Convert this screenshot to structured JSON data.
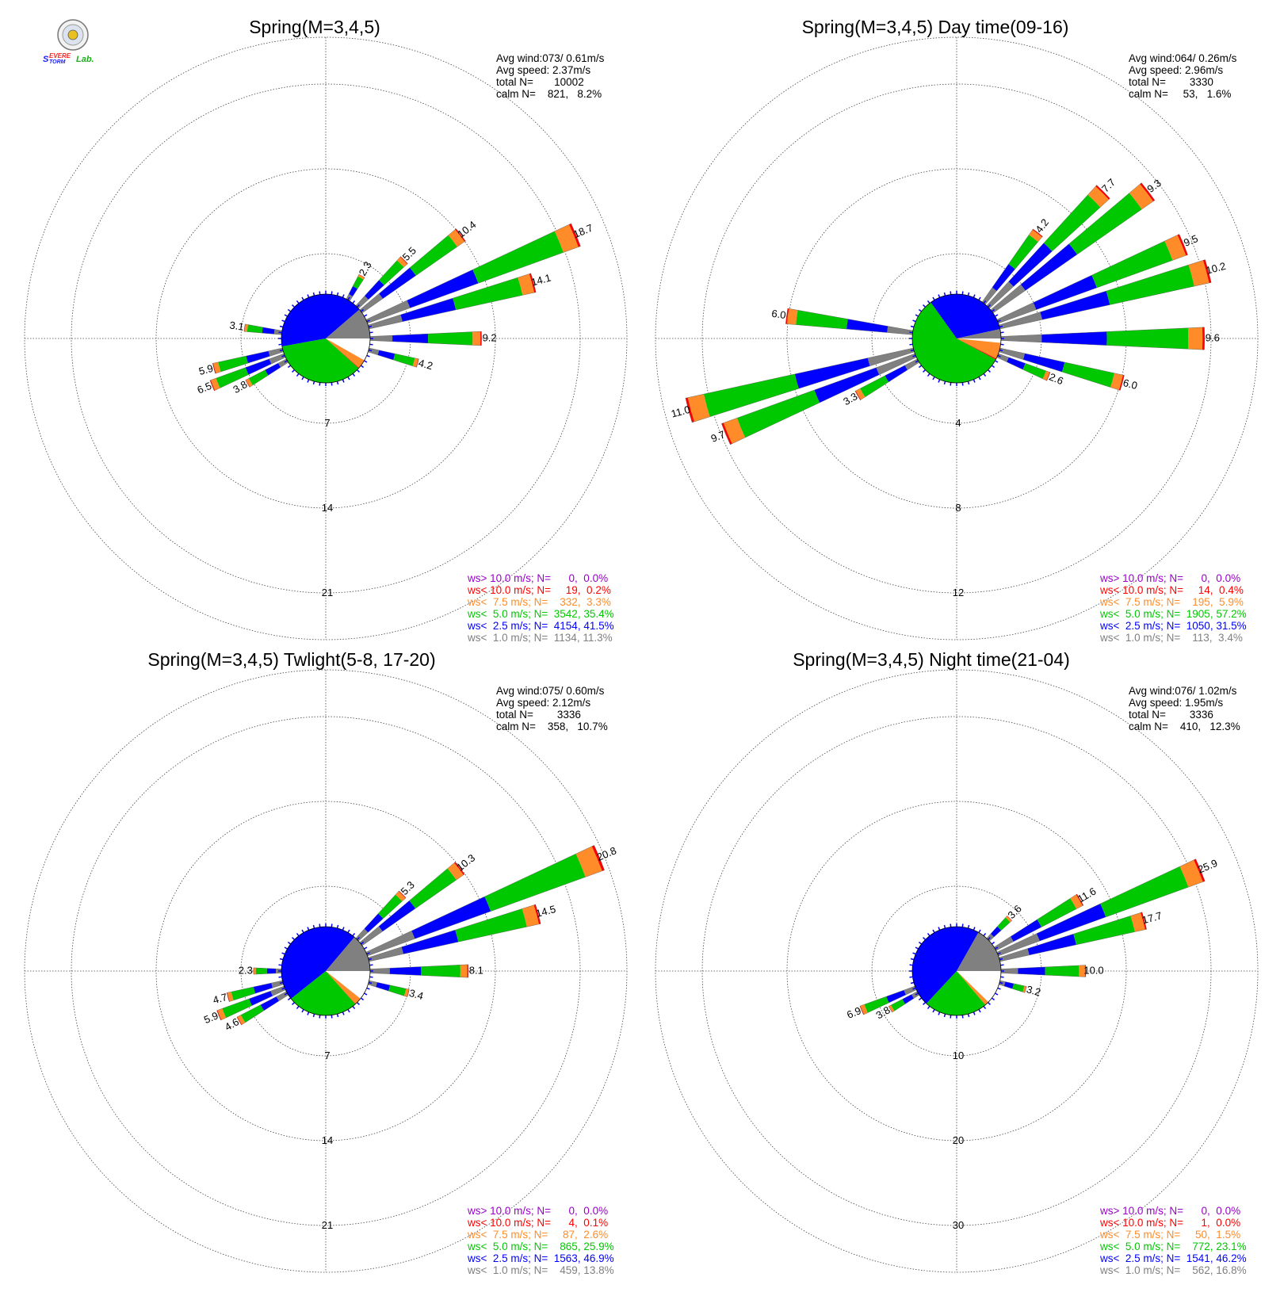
{
  "logo": {
    "name": "severe-storm-lab-logo",
    "text": [
      "S",
      "EVERE",
      "TORM",
      "Lab."
    ]
  },
  "colors": {
    "gt10": "#9a00c8",
    "lt10": "#ff0000",
    "lt7_5": "#ff8c28",
    "lt5": "#00c800",
    "lt2_5": "#0000ff",
    "lt1": "#808080"
  },
  "chart_data": [
    {
      "type": "wind-rose",
      "title": "Spring(M=3,4,5)",
      "stats": {
        "avg_wind": "Avg wind:073/ 0.61m/s",
        "avg_speed": "Avg speed: 2.37m/s",
        "total": "total N=       10002",
        "calm": "calm N=    821,   8.2%"
      },
      "ring_values": [
        7,
        14,
        21
      ],
      "ring_labels": [
        "7",
        "14",
        "21"
      ],
      "calm_pie": {
        "lt1": 11.3,
        "lt2_5": 41.5,
        "lt5": 35.4,
        "lt7_5": 3.3,
        "lt10": 0.2,
        "calm": 8.2
      },
      "bars": [
        {
          "dir": 30,
          "value": 2.3,
          "label": "2.3"
        },
        {
          "dir": 45,
          "value": 5.5,
          "label": "5.5"
        },
        {
          "dir": 52.5,
          "value": 10.4,
          "label": "10.4"
        },
        {
          "dir": 67.5,
          "value": 18.7,
          "label": "18.7"
        },
        {
          "dir": 75,
          "value": 14.1,
          "label": "14.1"
        },
        {
          "dir": 90,
          "value": 9.2,
          "label": "9.2"
        },
        {
          "dir": 105,
          "value": 4.2,
          "label": "4.2"
        },
        {
          "dir": 240,
          "value": 3.8,
          "label": "3.8"
        },
        {
          "dir": 247.5,
          "value": 6.5,
          "label": "6.5"
        },
        {
          "dir": 255,
          "value": 5.9,
          "label": "5.9"
        },
        {
          "dir": 277.5,
          "value": 3.1,
          "label": "3.1"
        }
      ],
      "legend": [
        {
          "key": "gt10",
          "text": "ws> 10.0 m/s; N=      0,  0.0%"
        },
        {
          "key": "lt10",
          "text": "ws< 10.0 m/s; N=     19,  0.2%"
        },
        {
          "key": "lt7_5",
          "text": "ws<  7.5 m/s; N=    332,  3.3%"
        },
        {
          "key": "lt5",
          "text": "ws<  5.0 m/s; N=  3542, 35.4%"
        },
        {
          "key": "lt2_5",
          "text": "ws<  2.5 m/s; N=  4154, 41.5%"
        },
        {
          "key": "lt1",
          "text": "ws<  1.0 m/s; N=  1134, 11.3%"
        }
      ]
    },
    {
      "type": "wind-rose",
      "title": "Spring(M=3,4,5) Day time(09-16)",
      "stats": {
        "avg_wind": "Avg wind:064/ 0.26m/s",
        "avg_speed": "Avg speed: 2.96m/s",
        "total": "total N=        3330",
        "calm": "calm N=     53,   1.6%"
      },
      "ring_values": [
        4,
        8,
        12
      ],
      "ring_labels": [
        "4",
        "8",
        "12"
      ],
      "calm_pie": {
        "lt1": 3.4,
        "lt2_5": 31.5,
        "lt5": 57.2,
        "lt7_5": 5.9,
        "lt10": 0.4,
        "calm": 1.6
      },
      "bars": [
        {
          "dir": 37.5,
          "value": 4.2,
          "label": "4.2"
        },
        {
          "dir": 45,
          "value": 7.7,
          "label": "7.7"
        },
        {
          "dir": 52.5,
          "value": 9.3,
          "label": "9.3"
        },
        {
          "dir": 67.5,
          "value": 9.5,
          "label": "9.5"
        },
        {
          "dir": 75,
          "value": 10.2,
          "label": "10.2"
        },
        {
          "dir": 90,
          "value": 9.6,
          "label": "9.6"
        },
        {
          "dir": 105,
          "value": 6.0,
          "label": "6.0"
        },
        {
          "dir": 112.5,
          "value": 2.6,
          "label": "2.6"
        },
        {
          "dir": 240,
          "value": 3.3,
          "label": "3.3"
        },
        {
          "dir": 247.5,
          "value": 9.7,
          "label": "9.7"
        },
        {
          "dir": 255,
          "value": 11.0,
          "label": "11.0"
        },
        {
          "dir": 277.5,
          "value": 6.0,
          "label": "6.0"
        }
      ],
      "legend": [
        {
          "key": "gt10",
          "text": "ws> 10.0 m/s; N=      0,  0.0%"
        },
        {
          "key": "lt10",
          "text": "ws< 10.0 m/s; N=     14,  0.4%"
        },
        {
          "key": "lt7_5",
          "text": "ws<  7.5 m/s; N=    195,  5.9%"
        },
        {
          "key": "lt5",
          "text": "ws<  5.0 m/s; N=  1905, 57.2%"
        },
        {
          "key": "lt2_5",
          "text": "ws<  2.5 m/s; N=  1050, 31.5%"
        },
        {
          "key": "lt1",
          "text": "ws<  1.0 m/s; N=    113,  3.4%"
        }
      ]
    },
    {
      "type": "wind-rose",
      "title": "Spring(M=3,4,5) Twlight(5-8, 17-20)",
      "stats": {
        "avg_wind": "Avg wind:075/ 0.60m/s",
        "avg_speed": "Avg speed: 2.12m/s",
        "total": "total N=        3336",
        "calm": "calm N=    358,   10.7%"
      },
      "ring_values": [
        7,
        14,
        21
      ],
      "ring_labels": [
        "7",
        "14",
        "21"
      ],
      "calm_pie": {
        "lt1": 13.8,
        "lt2_5": 46.9,
        "lt5": 25.9,
        "lt7_5": 2.6,
        "lt10": 0.1,
        "calm": 10.7
      },
      "bars": [
        {
          "dir": 45,
          "value": 5.3,
          "label": "5.3"
        },
        {
          "dir": 52.5,
          "value": 10.3,
          "label": "10.3"
        },
        {
          "dir": 67.5,
          "value": 20.8,
          "label": "20.8"
        },
        {
          "dir": 75,
          "value": 14.5,
          "label": "14.5"
        },
        {
          "dir": 90,
          "value": 8.1,
          "label": "8.1"
        },
        {
          "dir": 105,
          "value": 3.4,
          "label": "3.4"
        },
        {
          "dir": 240,
          "value": 4.6,
          "label": "4.6"
        },
        {
          "dir": 247.5,
          "value": 5.9,
          "label": "5.9"
        },
        {
          "dir": 255,
          "value": 4.7,
          "label": "4.7"
        },
        {
          "dir": 270,
          "value": 2.3,
          "label": "2.3"
        }
      ],
      "legend": [
        {
          "key": "gt10",
          "text": "ws> 10.0 m/s; N=      0,  0.0%"
        },
        {
          "key": "lt10",
          "text": "ws< 10.0 m/s; N=      4,  0.1%"
        },
        {
          "key": "lt7_5",
          "text": "ws<  7.5 m/s; N=     87,  2.6%"
        },
        {
          "key": "lt5",
          "text": "ws<  5.0 m/s; N=    865, 25.9%"
        },
        {
          "key": "lt2_5",
          "text": "ws<  2.5 m/s; N=  1563, 46.9%"
        },
        {
          "key": "lt1",
          "text": "ws<  1.0 m/s; N=    459, 13.8%"
        }
      ]
    },
    {
      "type": "wind-rose",
      "title": "Spring(M=3,4,5) Night time(21-04)",
      "stats": {
        "avg_wind": "Avg wind:076/ 1.02m/s",
        "avg_speed": "Avg speed: 1.95m/s",
        "total": "total N=        3336",
        "calm": "calm N=    410,   12.3%"
      },
      "ring_values": [
        10,
        20,
        30
      ],
      "ring_labels": [
        "10",
        "20",
        "30"
      ],
      "calm_pie": {
        "lt1": 16.8,
        "lt2_5": 46.2,
        "lt5": 23.1,
        "lt7_5": 1.5,
        "lt10": 0.0,
        "calm": 12.3
      },
      "bars": [
        {
          "dir": 45,
          "value": 3.6,
          "label": "3.6"
        },
        {
          "dir": 60,
          "value": 11.6,
          "label": "11.6"
        },
        {
          "dir": 67.5,
          "value": 25.9,
          "label": "25.9"
        },
        {
          "dir": 75,
          "value": 17.7,
          "label": "17.7"
        },
        {
          "dir": 90,
          "value": 10.0,
          "label": "10.0"
        },
        {
          "dir": 105,
          "value": 3.2,
          "label": "3.2"
        },
        {
          "dir": 240,
          "value": 3.8,
          "label": "3.8"
        },
        {
          "dir": 247.5,
          "value": 6.9,
          "label": "6.9"
        }
      ],
      "legend": [
        {
          "key": "gt10",
          "text": "ws> 10.0 m/s; N=      0,  0.0%"
        },
        {
          "key": "lt10",
          "text": "ws< 10.0 m/s; N=      1,  0.0%"
        },
        {
          "key": "lt7_5",
          "text": "ws<  7.5 m/s; N=     50,  1.5%"
        },
        {
          "key": "lt5",
          "text": "ws<  5.0 m/s; N=    772, 23.1%"
        },
        {
          "key": "lt2_5",
          "text": "ws<  2.5 m/s; N=  1541, 46.2%"
        },
        {
          "key": "lt1",
          "text": "ws<  1.0 m/s; N=    562, 16.8%"
        }
      ]
    }
  ]
}
